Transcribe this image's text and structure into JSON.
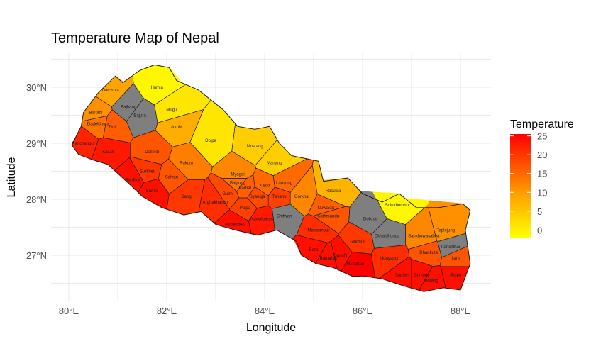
{
  "title": "Temperature Map of Nepal",
  "xlabel": "Longitude",
  "ylabel": "Latitude",
  "x_ticks": [
    "80°E",
    "82°E",
    "84°E",
    "86°E",
    "88°E"
  ],
  "y_ticks": [
    "27°N",
    "28°N",
    "29°N",
    "30°N"
  ],
  "legend": {
    "title": "Temperature",
    "ticks": [
      "25",
      "20",
      "15",
      "10",
      "5",
      "0"
    ],
    "colors": [
      "#FFFF00",
      "#FFA500",
      "#FF4500",
      "#FF0000"
    ]
  },
  "no_data_color": "#7f7f7f",
  "chart_data": {
    "type": "heatmap",
    "title": "Temperature Map of Nepal",
    "xlabel": "Longitude",
    "ylabel": "Latitude",
    "xlim": [
      79.9,
      88.6
    ],
    "ylim": [
      26.2,
      30.6
    ],
    "x_ticks": [
      80,
      82,
      84,
      86,
      88
    ],
    "y_ticks": [
      27,
      28,
      29,
      30
    ],
    "color_scale": {
      "name": "Temperature",
      "min": -2,
      "max": 25.5,
      "ticks": [
        0,
        5,
        10,
        15,
        20,
        25
      ]
    },
    "grid": true,
    "legend_position": "right",
    "districts": [
      {
        "name": "Darchula",
        "lon": 80.85,
        "lat": 29.95,
        "temp": 9
      },
      {
        "name": "Bajhang",
        "lon": 81.22,
        "lat": 29.65,
        "temp": null
      },
      {
        "name": "Humla",
        "lon": 81.8,
        "lat": 30.0,
        "temp": -1
      },
      {
        "name": "Baitadi",
        "lon": 80.55,
        "lat": 29.55,
        "temp": 11
      },
      {
        "name": "Dadeldhura",
        "lon": 80.6,
        "lat": 29.35,
        "temp": 14
      },
      {
        "name": "Doti",
        "lon": 80.9,
        "lat": 29.3,
        "temp": 16
      },
      {
        "name": "Bajura",
        "lon": 81.45,
        "lat": 29.5,
        "temp": null
      },
      {
        "name": "Mugu",
        "lon": 82.1,
        "lat": 29.6,
        "temp": 1
      },
      {
        "name": "Jumla",
        "lon": 82.2,
        "lat": 29.3,
        "temp": 8
      },
      {
        "name": "Dolpa",
        "lon": 82.9,
        "lat": 29.05,
        "temp": 1
      },
      {
        "name": "Kanchanpur",
        "lon": 80.3,
        "lat": 29.0,
        "temp": 22
      },
      {
        "name": "Kailali",
        "lon": 80.8,
        "lat": 28.85,
        "temp": 23
      },
      {
        "name": "Dailekh",
        "lon": 81.7,
        "lat": 28.85,
        "temp": 17
      },
      {
        "name": "Rukum",
        "lon": 82.4,
        "lat": 28.65,
        "temp": 13
      },
      {
        "name": "Surkhet",
        "lon": 81.6,
        "lat": 28.5,
        "temp": 20
      },
      {
        "name": "Salyan",
        "lon": 82.1,
        "lat": 28.4,
        "temp": 17
      },
      {
        "name": "Bardiya",
        "lon": 81.3,
        "lat": 28.35,
        "temp": 24
      },
      {
        "name": "Banke",
        "lon": 81.7,
        "lat": 28.15,
        "temp": 24
      },
      {
        "name": "Dang",
        "lon": 82.4,
        "lat": 28.05,
        "temp": 20
      },
      {
        "name": "Mustang",
        "lon": 83.8,
        "lat": 28.95,
        "temp": 4
      },
      {
        "name": "Manang",
        "lon": 84.2,
        "lat": 28.65,
        "temp": 4
      },
      {
        "name": "Myagdi",
        "lon": 83.45,
        "lat": 28.45,
        "temp": 12
      },
      {
        "name": "Baglung",
        "lon": 83.45,
        "lat": 28.3,
        "temp": 14
      },
      {
        "name": "Parbat",
        "lon": 83.6,
        "lat": 28.2,
        "temp": 16
      },
      {
        "name": "Kaski",
        "lon": 84.0,
        "lat": 28.25,
        "temp": 15
      },
      {
        "name": "Lamjung",
        "lon": 84.4,
        "lat": 28.3,
        "temp": 15
      },
      {
        "name": "Gorkha",
        "lon": 84.75,
        "lat": 28.05,
        "temp": 12
      },
      {
        "name": "Gulmi",
        "lon": 83.25,
        "lat": 28.1,
        "temp": 18
      },
      {
        "name": "Syangja",
        "lon": 83.85,
        "lat": 28.05,
        "temp": 18
      },
      {
        "name": "Tanahu",
        "lon": 84.3,
        "lat": 28.05,
        "temp": 19
      },
      {
        "name": "Arghakhanchi",
        "lon": 83.0,
        "lat": 27.95,
        "temp": 21
      },
      {
        "name": "Palpa",
        "lon": 83.6,
        "lat": 27.85,
        "temp": 19
      },
      {
        "name": "Nawalparasi",
        "lon": 83.95,
        "lat": 27.65,
        "temp": 23
      },
      {
        "name": "Rupandehi",
        "lon": 83.4,
        "lat": 27.55,
        "temp": 24
      },
      {
        "name": "Chitwan",
        "lon": 84.4,
        "lat": 27.7,
        "temp": null
      },
      {
        "name": "Rasuwa",
        "lon": 85.4,
        "lat": 28.15,
        "temp": 7
      },
      {
        "name": "Nuwakot",
        "lon": 85.25,
        "lat": 27.85,
        "temp": 16
      },
      {
        "name": "Kathmandu",
        "lon": 85.3,
        "lat": 27.7,
        "temp": 17
      },
      {
        "name": "Makwanpur",
        "lon": 85.1,
        "lat": 27.45,
        "temp": 21
      },
      {
        "name": "Bara",
        "lon": 85.0,
        "lat": 27.1,
        "temp": 24
      },
      {
        "name": "Rautahat",
        "lon": 85.3,
        "lat": 26.95,
        "temp": 24
      },
      {
        "name": "Sarlahi",
        "lon": 85.55,
        "lat": 27.0,
        "temp": 24
      },
      {
        "name": "Sindhuli",
        "lon": 85.9,
        "lat": 27.25,
        "temp": 20
      },
      {
        "name": "Dolkha",
        "lon": 86.15,
        "lat": 27.65,
        "temp": null
      },
      {
        "name": "Mahottari",
        "lon": 85.85,
        "lat": 26.85,
        "temp": 26
      },
      {
        "name": "Okhaldhunga",
        "lon": 86.5,
        "lat": 27.35,
        "temp": null
      },
      {
        "name": "Solukhumbu",
        "lon": 86.7,
        "lat": 27.9,
        "temp": -1
      },
      {
        "name": "Udayapur",
        "lon": 86.55,
        "lat": 26.95,
        "temp": 21
      },
      {
        "name": "Sankhuwasabha",
        "lon": 87.25,
        "lat": 27.35,
        "temp": 12
      },
      {
        "name": "Taplejung",
        "lon": 87.7,
        "lat": 27.45,
        "temp": 11
      },
      {
        "name": "Dhankuta",
        "lon": 87.35,
        "lat": 27.05,
        "temp": 17
      },
      {
        "name": "Panchthar",
        "lon": 87.8,
        "lat": 27.15,
        "temp": null
      },
      {
        "name": "Ilam",
        "lon": 87.9,
        "lat": 26.95,
        "temp": 17
      },
      {
        "name": "Saptari",
        "lon": 86.8,
        "lat": 26.65,
        "temp": 24
      },
      {
        "name": "Sunsari",
        "lon": 87.2,
        "lat": 26.65,
        "temp": 24
      },
      {
        "name": "Morang",
        "lon": 87.4,
        "lat": 26.55,
        "temp": 24
      },
      {
        "name": "Jhapa",
        "lon": 87.9,
        "lat": 26.65,
        "temp": 24
      }
    ]
  }
}
